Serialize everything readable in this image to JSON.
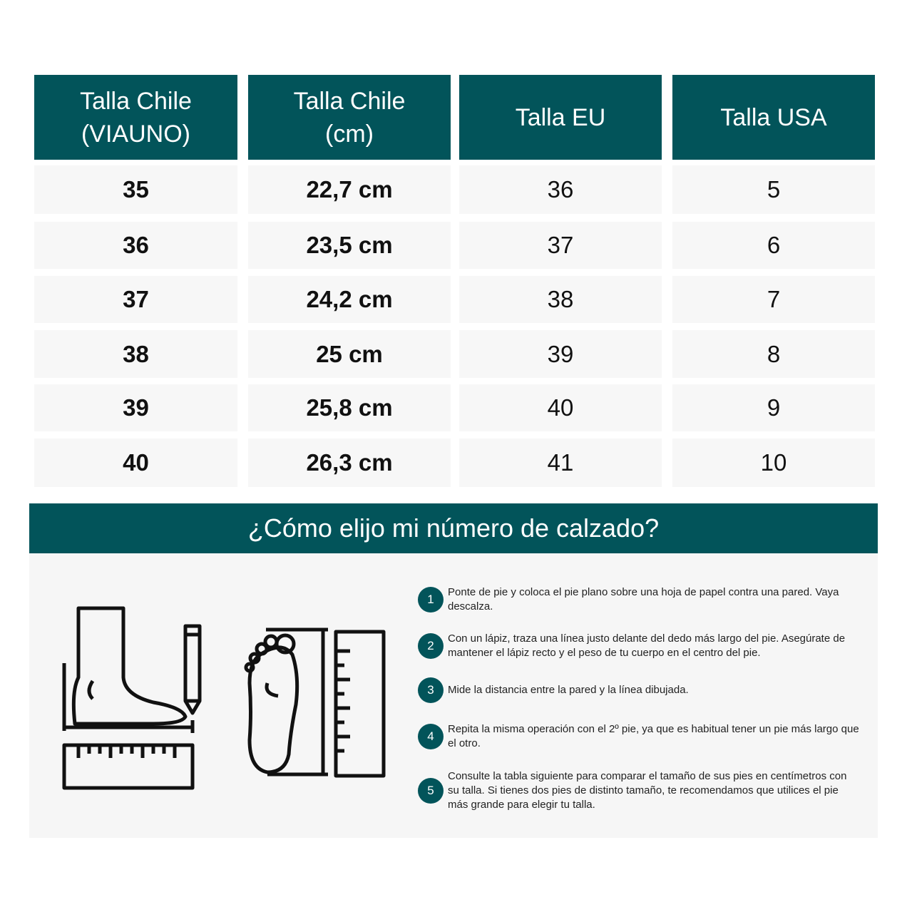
{
  "table": {
    "headers": [
      "Talla Chile\n(VIAUNO)",
      "Talla Chile\n(cm)",
      "Talla EU",
      "Talla USA"
    ],
    "rows": [
      [
        "35",
        "22,7 cm",
        "36",
        "5"
      ],
      [
        "36",
        "23,5 cm",
        "37",
        "6"
      ],
      [
        "37",
        "24,2 cm",
        "38",
        "7"
      ],
      [
        "38",
        "25 cm",
        "39",
        "8"
      ],
      [
        "39",
        "25,8 cm",
        "40",
        "9"
      ],
      [
        "40",
        "26,3 cm",
        "41",
        "10"
      ]
    ]
  },
  "guide": {
    "title": "¿Cómo elijo mi número de calzado?",
    "steps": [
      {
        "n": "1",
        "text": "Ponte de pie y coloca el pie plano sobre una hoja de papel contra una pared. Vaya descalza."
      },
      {
        "n": "2",
        "text": "Con un lápiz, traza una línea justo delante del  dedo más largo del pie. Asegúrate de mantener  el lápiz recto y el peso de tu cuerpo en el centro del pie."
      },
      {
        "n": "3",
        "text": "Mide la distancia entre la pared y la línea dibujada."
      },
      {
        "n": "4",
        "text": "Repita la misma operación con el 2º pie, ya que es habitual tener un pie más largo que el otro."
      },
      {
        "n": "5",
        "text": "Consulte la tabla siguiente para comparar el tamaño de sus pies en centímetros con su talla. Si tienes dos pies de distinto tamaño, te recomendamos que utilices el pie más grande para elegir tu talla."
      }
    ]
  },
  "colors": {
    "accent": "#02545a",
    "cell": "#f7f7f7"
  },
  "icons": [
    "foot-side-ruler-pencil-icon",
    "foot-sole-ruler-icon"
  ]
}
